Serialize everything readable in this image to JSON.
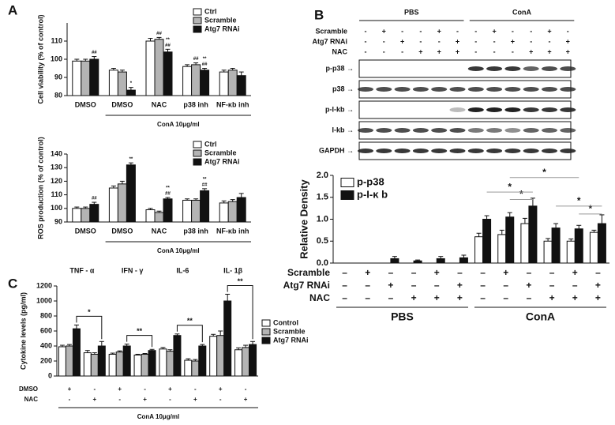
{
  "panel_labels": [
    "A",
    "B",
    "C"
  ],
  "blot": {
    "groups": [
      "PBS",
      "ConA"
    ],
    "rows": [
      {
        "name": "Scramble",
        "signs": [
          "-",
          "+",
          "-",
          "-",
          "+",
          "-",
          "-",
          "+",
          "-",
          "-",
          "+",
          "-"
        ]
      },
      {
        "name": "Atg7 RNAi",
        "signs": [
          "-",
          "-",
          "+",
          "-",
          "-",
          "+",
          "-",
          "-",
          "+",
          "-",
          "-",
          "+"
        ]
      },
      {
        "name": "NAC",
        "signs": [
          "-",
          "-",
          "-",
          "+",
          "+",
          "+",
          "-",
          "-",
          "-",
          "+",
          "+",
          "+"
        ]
      }
    ],
    "bands": [
      "p-p38 →",
      "p38 →",
      "p-I-kb →",
      "I-kb →",
      "GAPDH →"
    ]
  },
  "chart_data": [
    {
      "type": "bar",
      "ylabel": "Cell viability (% of control)",
      "categories": [
        "DMSO",
        "DMSO",
        "NAC",
        "p38 inh",
        "NF-κb inh"
      ],
      "group_label": "ConA 10μg/ml",
      "ylim": [
        80,
        120
      ],
      "yticks": [
        80,
        90,
        100,
        110
      ],
      "legend": "upper right",
      "series": [
        {
          "name": "Ctrl",
          "color": "#ffffff",
          "values": [
            99,
            94,
            110,
            96,
            93
          ],
          "errors": [
            1,
            1,
            1.5,
            1,
            1
          ]
        },
        {
          "name": "Scramble",
          "color": "#b4b4b4",
          "values": [
            99,
            93,
            111,
            97,
            94
          ],
          "errors": [
            1,
            1,
            1,
            1,
            1
          ],
          "marks": [
            null,
            null,
            [
              "##"
            ],
            [
              "##"
            ],
            null
          ]
        },
        {
          "name": "Atg7 RNAi",
          "color": "#111111",
          "values": [
            100,
            83,
            104,
            94,
            91
          ],
          "errors": [
            1.5,
            1.5,
            1.5,
            1,
            2
          ],
          "marks": [
            [
              "##"
            ],
            [
              "*"
            ],
            [
              "##",
              "**"
            ],
            [
              "##",
              "**"
            ],
            null
          ]
        }
      ]
    },
    {
      "type": "bar",
      "ylabel": "ROS production (% of control)",
      "categories": [
        "DMSO",
        "DMSO",
        "NAC",
        "p38 inh",
        "NF-κb inh"
      ],
      "group_label": "ConA 10μg/ml",
      "ylim": [
        90,
        140
      ],
      "yticks": [
        90,
        100,
        110,
        120,
        130,
        140
      ],
      "legend": "upper right",
      "series": [
        {
          "name": "Ctrl",
          "color": "#ffffff",
          "values": [
            100,
            115,
            99,
            106,
            104
          ],
          "errors": [
            1,
            1.5,
            1,
            1,
            1.5
          ]
        },
        {
          "name": "Scramble",
          "color": "#b4b4b4",
          "values": [
            100,
            118,
            97,
            106,
            105
          ],
          "errors": [
            1,
            2,
            1,
            1,
            1.5
          ]
        },
        {
          "name": "Atg7 RNAi",
          "color": "#111111",
          "values": [
            103,
            132,
            107,
            113,
            108
          ],
          "errors": [
            1.5,
            1.5,
            1,
            1.5,
            3
          ],
          "marks": [
            [
              "##"
            ],
            [
              "**"
            ],
            [
              "##",
              "**"
            ],
            [
              "##",
              "**"
            ],
            null
          ]
        }
      ]
    },
    {
      "type": "bar",
      "ylabel": "Relative Density",
      "ylim": [
        0,
        2.0
      ],
      "yticks": [
        {
          "value": 0,
          "label": "0.0"
        },
        0.5,
        {
          "value": 1.0,
          "label": "1.0"
        },
        1.5,
        {
          "value": 2.0,
          "label": "2.0"
        }
      ],
      "legend": "upper left",
      "condition_rows": [
        {
          "name": "Scramble",
          "signs": [
            "–",
            "+",
            "–",
            "–",
            "+",
            "–",
            "–",
            "+",
            "–",
            "–",
            "+",
            "–"
          ]
        },
        {
          "name": "Atg7 RNAi",
          "signs": [
            "–",
            "–",
            "+",
            "–",
            "–",
            "+",
            "–",
            "–",
            "+",
            "–",
            "–",
            "+"
          ]
        },
        {
          "name": "NAC",
          "signs": [
            "–",
            "–",
            "–",
            "+",
            "+",
            "+",
            "–",
            "–",
            "–",
            "+",
            "+",
            "+"
          ]
        }
      ],
      "groups": [
        "PBS",
        "ConA"
      ],
      "significance": [
        "*",
        "*",
        "*",
        "*",
        "*"
      ],
      "series": [
        {
          "name": "p-p38",
          "color": "#ffffff",
          "values": [
            0,
            0,
            0,
            0,
            0,
            0,
            0.6,
            0.65,
            0.9,
            0.5,
            0.5,
            0.7
          ],
          "errors": [
            0,
            0,
            0,
            0,
            0,
            0,
            0.08,
            0.1,
            0.12,
            0.06,
            0.05,
            0.05
          ]
        },
        {
          "name": "p-I-κ b",
          "color": "#111111",
          "values": [
            0,
            0,
            0.1,
            0.05,
            0.1,
            0.12,
            1.0,
            1.05,
            1.3,
            0.8,
            0.78,
            0.9
          ],
          "errors": [
            0,
            0,
            0.05,
            0.02,
            0.05,
            0.06,
            0.08,
            0.1,
            0.18,
            0.1,
            0.08,
            0.2
          ]
        }
      ]
    },
    {
      "type": "bar",
      "ylabel": "Cytokine levels (pg/ml)",
      "groups": [
        "TNF - α",
        "IFN - γ",
        "IL-6",
        "IL- 1β"
      ],
      "condition_rows": [
        {
          "name": "DMSO",
          "signs": [
            "+",
            "-",
            "+",
            "-",
            "+",
            "-",
            "+",
            "-"
          ]
        },
        {
          "name": "NAC",
          "signs": [
            "-",
            "+",
            "-",
            "+",
            "-",
            "+",
            "-",
            "+"
          ]
        }
      ],
      "group_label": "ConA 10μg/ml",
      "significance": [
        "*",
        "**",
        "**",
        "**"
      ],
      "ylim": [
        0,
        1200
      ],
      "yticks": [
        0,
        200,
        400,
        600,
        800,
        1000,
        1200
      ],
      "legend": "right",
      "series": [
        {
          "name": "Control",
          "color": "#ffffff",
          "values": [
            390,
            310,
            290,
            280,
            360,
            210,
            530,
            350
          ],
          "errors": [
            20,
            30,
            15,
            10,
            20,
            20,
            25,
            25
          ]
        },
        {
          "name": "Scramble",
          "color": "#b4b4b4",
          "values": [
            400,
            290,
            320,
            290,
            330,
            200,
            540,
            380
          ],
          "errors": [
            20,
            20,
            15,
            10,
            20,
            20,
            60,
            30
          ]
        },
        {
          "name": "Atg7 RNAi",
          "color": "#111111",
          "values": [
            630,
            400,
            400,
            340,
            540,
            400,
            1000,
            420
          ],
          "errors": [
            50,
            60,
            25,
            15,
            20,
            20,
            90,
            40
          ]
        }
      ]
    }
  ]
}
